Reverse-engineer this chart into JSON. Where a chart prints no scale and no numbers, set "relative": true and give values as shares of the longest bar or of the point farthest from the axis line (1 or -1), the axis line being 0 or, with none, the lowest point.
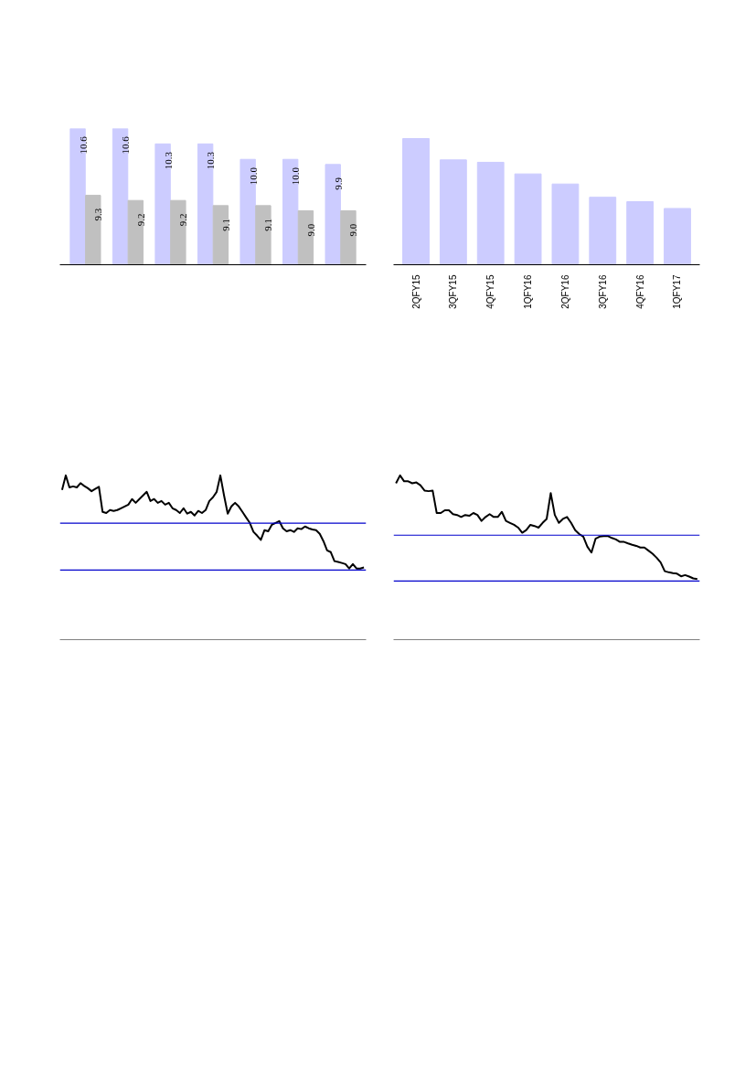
{
  "chart_data": [
    {
      "type": "bar",
      "categories": [
        null,
        null,
        null,
        null,
        null,
        null,
        null
      ],
      "ylim": [
        7.95,
        10.6
      ],
      "tick_labels": false,
      "grid": false,
      "series": [
        {
          "color": "#ccccff",
          "values": [
            10.6,
            10.6,
            10.3,
            10.3,
            10.0,
            10.0,
            9.9
          ],
          "value_labels": [
            "10.6",
            "10.6",
            "10.3",
            "10.3",
            "10.0",
            "10.0",
            "9.9"
          ]
        },
        {
          "color": "#c0c0c0",
          "values": [
            9.3,
            9.2,
            9.2,
            9.1,
            9.1,
            9.0,
            9.0
          ],
          "value_labels": [
            "9.3",
            "9.2",
            "9.2",
            "9.1",
            "9.1",
            "9.0",
            "9.0"
          ]
        }
      ]
    },
    {
      "type": "bar",
      "relative": true,
      "categories": [
        "2QFY15",
        "3QFY15",
        "4QFY15",
        "1QFY16",
        "2QFY16",
        "3QFY16",
        "4QFY16",
        "1QFY17"
      ],
      "grid": false,
      "series": [
        {
          "color": "#ccccff",
          "values": [
            1,
            0.831,
            0.812,
            0.72,
            0.64,
            0.535,
            0.5,
            0.446
          ]
        }
      ]
    },
    {
      "type": "line",
      "relative": true,
      "categories": [
        null,
        null,
        null,
        null,
        null,
        null,
        null,
        null,
        null,
        null,
        null,
        null,
        null,
        null,
        null,
        null,
        null,
        null,
        null,
        null,
        null,
        null,
        null,
        null,
        null,
        null,
        null,
        null,
        null,
        null,
        null,
        null,
        null,
        null,
        null,
        null,
        null,
        null,
        null,
        null,
        null,
        null,
        null,
        null,
        null,
        null,
        null,
        null,
        null,
        null,
        null,
        null,
        null,
        null,
        null,
        null,
        null,
        null,
        null,
        null,
        null,
        null,
        null,
        null,
        null,
        null,
        null,
        null,
        null,
        null,
        null,
        null,
        null,
        null,
        null,
        null,
        null,
        null,
        null,
        null,
        null,
        null,
        null
      ],
      "grid": false,
      "marker": "none",
      "line_style": "solid",
      "series": [
        {
          "color": "#000000",
          "values": [
            0.911,
            1,
            0.927,
            0.933,
            0.927,
            0.953,
            0.936,
            0.922,
            0.904,
            0.918,
            0.931,
            0.778,
            0.771,
            0.789,
            0.784,
            0.789,
            0.8,
            0.811,
            0.822,
            0.856,
            0.833,
            0.856,
            0.878,
            0.9,
            0.844,
            0.856,
            0.833,
            0.844,
            0.822,
            0.833,
            0.8,
            0.789,
            0.771,
            0.8,
            0.767,
            0.778,
            0.756,
            0.784,
            0.771,
            0.789,
            0.844,
            0.867,
            0.9,
            1,
            0.878,
            0.767,
            0.811,
            0.833,
            0.811,
            0.778,
            0.744,
            0.711,
            0.656,
            0.633,
            0.607,
            0.667,
            0.66,
            0.7,
            0.711,
            0.722,
            0.678,
            0.66,
            0.667,
            0.656,
            0.678,
            0.673,
            0.689,
            0.678,
            0.671,
            0.667,
            0.644,
            0.6,
            0.544,
            0.533,
            0.478,
            0.473,
            0.467,
            0.46,
            0.433,
            0.46,
            0.433,
            0.433,
            0.44
          ]
        }
      ],
      "ref_lines": [
        {
          "axis": "y",
          "value": 0.709,
          "color": "#0000cc"
        },
        {
          "axis": "y",
          "value": 0.424,
          "color": "#0000cc"
        }
      ]
    },
    {
      "type": "line",
      "relative": true,
      "categories": [
        null,
        null,
        null,
        null,
        null,
        null,
        null,
        null,
        null,
        null,
        null,
        null,
        null,
        null,
        null,
        null,
        null,
        null,
        null,
        null,
        null,
        null,
        null,
        null,
        null,
        null,
        null,
        null,
        null,
        null,
        null,
        null,
        null,
        null,
        null,
        null,
        null,
        null,
        null,
        null,
        null,
        null,
        null,
        null,
        null,
        null,
        null,
        null,
        null,
        null,
        null,
        null,
        null,
        null,
        null,
        null,
        null,
        null,
        null,
        null,
        null,
        null,
        null,
        null,
        null,
        null,
        null,
        null,
        null,
        null,
        null,
        null,
        null,
        null,
        null
      ],
      "grid": false,
      "marker": "none",
      "line_style": "solid",
      "series": [
        {
          "color": "#000000",
          "values": [
            0.952,
            1,
            0.964,
            0.964,
            0.952,
            0.957,
            0.94,
            0.908,
            0.904,
            0.908,
            0.771,
            0.771,
            0.788,
            0.788,
            0.764,
            0.759,
            0.747,
            0.759,
            0.754,
            0.771,
            0.759,
            0.723,
            0.747,
            0.764,
            0.747,
            0.747,
            0.778,
            0.723,
            0.711,
            0.699,
            0.682,
            0.651,
            0.667,
            0.699,
            0.692,
            0.682,
            0.711,
            0.735,
            0.892,
            0.759,
            0.711,
            0.735,
            0.747,
            0.711,
            0.667,
            0.643,
            0.627,
            0.566,
            0.53,
            0.614,
            0.627,
            0.631,
            0.631,
            0.619,
            0.61,
            0.595,
            0.595,
            0.586,
            0.578,
            0.571,
            0.561,
            0.561,
            0.542,
            0.523,
            0.499,
            0.47,
            0.417,
            0.41,
            0.405,
            0.402,
            0.386,
            0.393,
            0.384,
            0.373,
            0.369
          ]
        }
      ],
      "ref_lines": [
        {
          "axis": "y",
          "value": 0.636,
          "color": "#0000cc"
        },
        {
          "axis": "y",
          "value": 0.357,
          "color": "#0000cc"
        }
      ]
    }
  ]
}
